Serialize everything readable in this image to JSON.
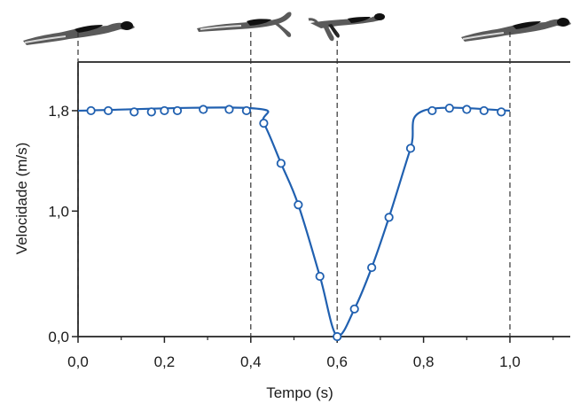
{
  "chart_data": {
    "type": "line",
    "xlabel": "Tempo (s)",
    "ylabel": "Velocidade (m/s)",
    "xlim": [
      0,
      1.15
    ],
    "ylim": [
      0,
      2.1
    ],
    "x_ticks": [
      {
        "value": 0.0,
        "label": "0,0"
      },
      {
        "value": 0.2,
        "label": "0,2"
      },
      {
        "value": 0.4,
        "label": "0,4"
      },
      {
        "value": 0.6,
        "label": "0,6"
      },
      {
        "value": 0.8,
        "label": "0,8"
      },
      {
        "value": 1.0,
        "label": "1,0"
      }
    ],
    "y_ticks": [
      {
        "value": 0.0,
        "label": "0,0"
      },
      {
        "value": 1.0,
        "label": "1,0"
      },
      {
        "value": 1.8,
        "label": "1,8"
      }
    ],
    "reference_lines_x": [
      0.0,
      0.4,
      0.6,
      1.0
    ],
    "line_color": "#2060b0",
    "grid": false,
    "series": [
      {
        "x": [
          0.03,
          0.07,
          0.13,
          0.17,
          0.2,
          0.23,
          0.29,
          0.35,
          0.39,
          0.43,
          0.47,
          0.51,
          0.56,
          0.6,
          0.64,
          0.68,
          0.72,
          0.77,
          0.82,
          0.86,
          0.9,
          0.94,
          0.98
        ],
        "y": [
          1.8,
          1.8,
          1.79,
          1.79,
          1.8,
          1.8,
          1.81,
          1.81,
          1.8,
          1.7,
          1.38,
          1.05,
          0.48,
          0.0,
          0.22,
          0.55,
          0.95,
          1.5,
          1.8,
          1.82,
          1.81,
          1.8,
          1.79
        ]
      }
    ],
    "curve": {
      "x": [
        0.0,
        0.4,
        0.43,
        0.47,
        0.51,
        0.56,
        0.6,
        0.64,
        0.68,
        0.72,
        0.77,
        0.8,
        1.0
      ],
      "y": [
        1.8,
        1.82,
        1.7,
        1.38,
        1.05,
        0.48,
        0.0,
        0.22,
        0.55,
        0.95,
        1.5,
        1.8,
        1.8
      ]
    },
    "swimmer_icons": [
      "swimmer-glide-icon",
      "swimmer-pull-icon",
      "swimmer-recovery-icon",
      "swimmer-glide-icon"
    ]
  }
}
